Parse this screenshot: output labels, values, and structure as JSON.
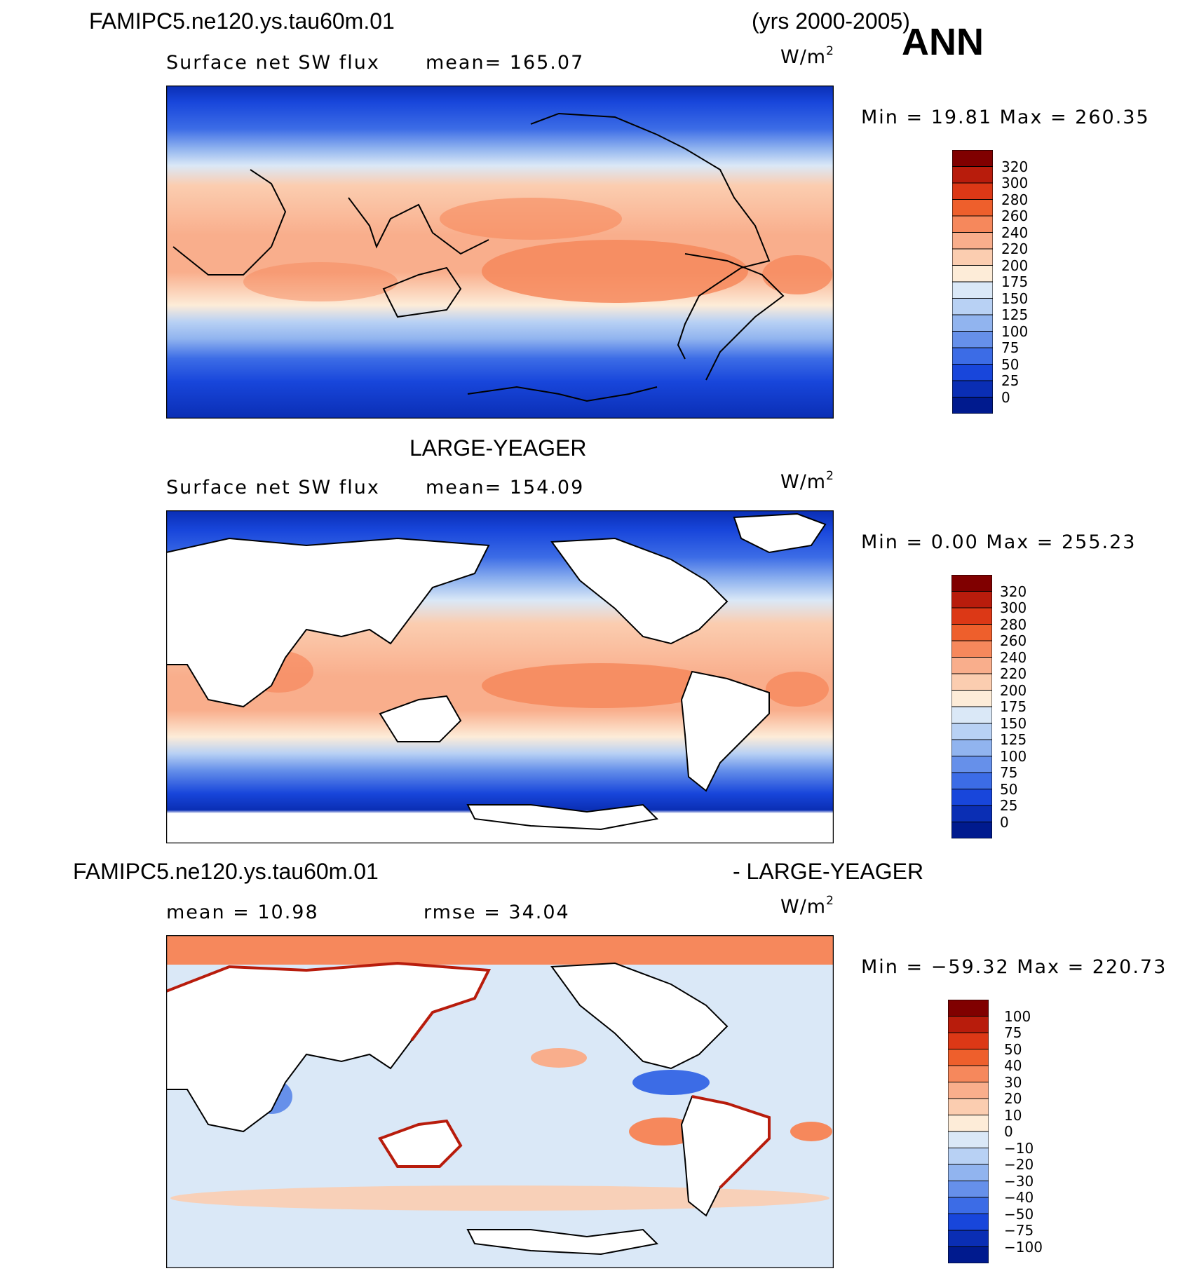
{
  "header": {
    "case_name": "FAMIPC5.ne120.ys.tau60m.01",
    "years": "(yrs 2000-2005)",
    "season": "ANN"
  },
  "panel1": {
    "variable": "Surface net SW flux",
    "mean": "mean= 165.07",
    "unit_base": "W/m",
    "unit_exp": "2",
    "minmax": "Min =   19.81 Max = 260.35"
  },
  "obs_title": "LARGE-YEAGER",
  "panel2": {
    "variable": "Surface net SW flux",
    "mean": "mean= 154.09",
    "unit_base": "W/m",
    "unit_exp": "2",
    "minmax": "Min =    0.00 Max = 255.23"
  },
  "diff_title": {
    "left": "FAMIPC5.ne120.ys.tau60m.01",
    "right": "- LARGE-YEAGER"
  },
  "panel3": {
    "mean": "mean =   10.98",
    "rmse": "rmse =   34.04",
    "unit_base": "W/m",
    "unit_exp": "2",
    "minmax": "Min = −59.32 Max = 220.73"
  },
  "colorbars": {
    "flux_levels": [
      "320",
      "300",
      "280",
      "260",
      "240",
      "220",
      "200",
      "175",
      "150",
      "125",
      "100",
      "75",
      "50",
      "25",
      "0"
    ],
    "diff_levels": [
      "100",
      "75",
      "50",
      "40",
      "30",
      "20",
      "10",
      "0",
      "−10",
      "−20",
      "−30",
      "−40",
      "−50",
      "−75",
      "−100"
    ],
    "colors": [
      "#800000",
      "#b81c0c",
      "#dc3816",
      "#ee5f2c",
      "#f6885c",
      "#f9ae8c",
      "#fbcdb0",
      "#fdecd8",
      "#dae8f7",
      "#b8d1f4",
      "#91b4ef",
      "#6690ea",
      "#3c6ce6",
      "#1846db",
      "#0a2eb4",
      "#001a8e"
    ]
  },
  "chart_data": [
    {
      "type": "heatmap",
      "title": "Surface net SW flux",
      "case": "FAMIPC5.ne120.ys.tau60m.01",
      "period": "yrs 2000-2005",
      "season": "ANN",
      "units": "W/m2",
      "mean": 165.07,
      "min": 19.81,
      "max": 260.35,
      "contour_levels": [
        0,
        25,
        50,
        75,
        100,
        125,
        150,
        175,
        200,
        220,
        240,
        260,
        280,
        300,
        320
      ]
    },
    {
      "type": "heatmap",
      "title": "Surface net SW flux",
      "case": "LARGE-YEAGER",
      "units": "W/m2",
      "mean": 154.09,
      "min": 0.0,
      "max": 255.23,
      "contour_levels": [
        0,
        25,
        50,
        75,
        100,
        125,
        150,
        175,
        200,
        220,
        240,
        260,
        280,
        300,
        320
      ],
      "land_masked": true
    },
    {
      "type": "heatmap",
      "title": "FAMIPC5.ne120.ys.tau60m.01 - LARGE-YEAGER",
      "units": "W/m2",
      "mean": 10.98,
      "rmse": 34.04,
      "min": -59.32,
      "max": 220.73,
      "contour_levels": [
        -100,
        -75,
        -50,
        -40,
        -30,
        -20,
        -10,
        0,
        10,
        20,
        30,
        40,
        50,
        75,
        100
      ],
      "land_masked": true
    }
  ]
}
